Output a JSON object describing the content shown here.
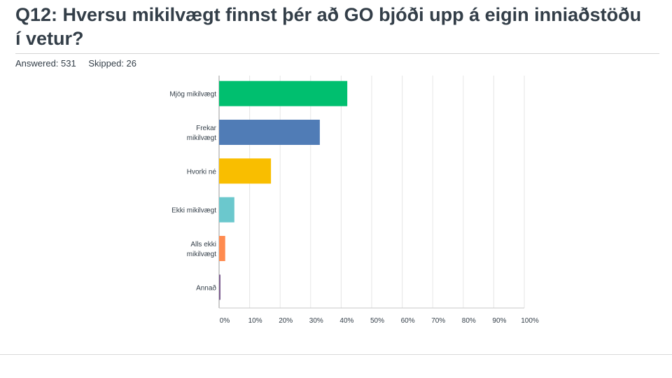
{
  "header": {
    "title": "Q12: Hversu mikilvægt finnst þér að GO bjóði upp á eigin inniaðstöðu í vetur?",
    "answered": "Answered: 531",
    "skipped": "Skipped: 26"
  },
  "chart_data": {
    "type": "bar",
    "orientation": "horizontal",
    "categories": [
      [
        "Mjög mikilvægt"
      ],
      [
        "Frekar",
        "mikilvægt"
      ],
      [
        "Hvorki né"
      ],
      [
        "Ekki mikilvægt"
      ],
      [
        "Alls ekki",
        "mikilvægt"
      ],
      [
        "Annað"
      ]
    ],
    "values": [
      42,
      33,
      17,
      5,
      2,
      0.4
    ],
    "colors": [
      "#00bf6f",
      "#507cb6",
      "#f9be00",
      "#6bc8cd",
      "#ff8b4f",
      "#7d5e90"
    ],
    "xlim": [
      0,
      100
    ],
    "xticks": [
      0,
      10,
      20,
      30,
      40,
      50,
      60,
      70,
      80,
      90,
      100
    ],
    "xtick_labels": [
      "0%",
      "10%",
      "20%",
      "30%",
      "40%",
      "50%",
      "60%",
      "70%",
      "80%",
      "90%",
      "100%"
    ],
    "grid": true
  }
}
